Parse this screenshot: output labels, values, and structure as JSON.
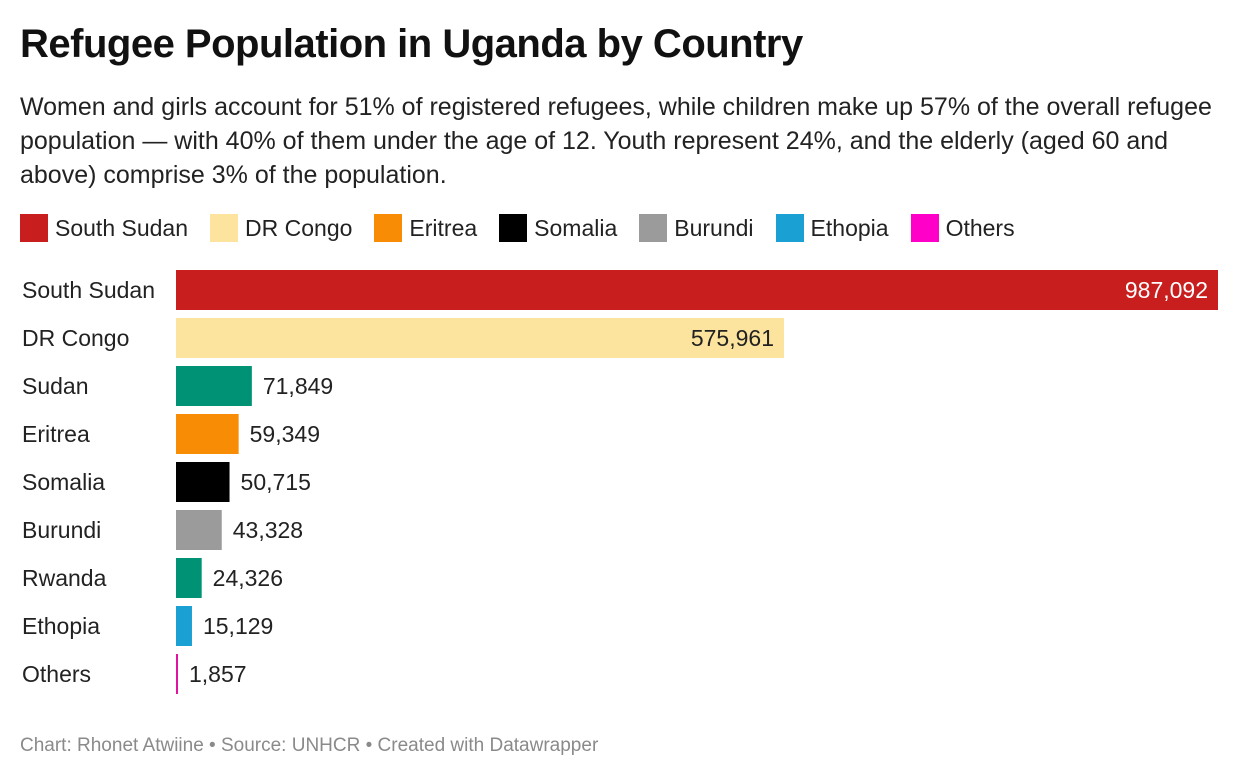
{
  "chart_data": {
    "type": "bar",
    "orientation": "horizontal",
    "title": "Refugee Population in Uganda by Country",
    "subtitle": "Women and girls account for 51% of registered refugees, while children make up 57% of the overall refugee population — with 40% of them under the age of 12. Youth represent 24%, and the elderly (aged 60 and above) comprise 3% of the population.",
    "legend": [
      {
        "label": "South Sudan",
        "color": "#c81e1e"
      },
      {
        "label": "DR Congo",
        "color": "#fde49e"
      },
      {
        "label": "Eritrea",
        "color": "#f88c05"
      },
      {
        "label": "Somalia",
        "color": "#000000"
      },
      {
        "label": "Burundi",
        "color": "#9b9b9b"
      },
      {
        "label": "Ethopia",
        "color": "#1aa0d3"
      },
      {
        "label": "Others",
        "color": "#ff00c8"
      }
    ],
    "legend_position": "top-left",
    "categories": [
      "South Sudan",
      "DR Congo",
      "Sudan",
      "Eritrea",
      "Somalia",
      "Burundi",
      "Rwanda",
      "Ethopia",
      "Others"
    ],
    "values": [
      987092,
      575961,
      71849,
      59349,
      50715,
      43328,
      24326,
      15129,
      1857
    ],
    "value_labels": [
      "987,092",
      "575,961",
      "71,849",
      "59,349",
      "50,715",
      "43,328",
      "24,326",
      "15,129",
      "1,857"
    ],
    "colors": [
      "#c81e1e",
      "#fde49e",
      "#009275",
      "#f88c05",
      "#000000",
      "#9b9b9b",
      "#009275",
      "#1aa0d3",
      "#e0149f"
    ],
    "xlim": [
      0,
      987092
    ],
    "grid": false
  },
  "footer": "Chart: Rhonet Atwiine • Source: UNHCR • Created with Datawrapper"
}
